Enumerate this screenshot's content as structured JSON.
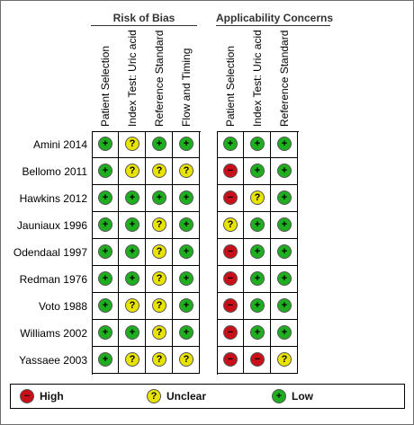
{
  "groups": [
    {
      "title": "Risk of Bias",
      "columns": [
        "Patient Selection",
        "Index Test: Uric acid",
        "Reference Standard",
        "Flow and Timing"
      ]
    },
    {
      "title": "Applicability Concerns",
      "columns": [
        "Patient Selection",
        "Index Test: Uric acid",
        "Reference Standard"
      ]
    }
  ],
  "studies": [
    {
      "name": "Amini 2014",
      "risk": [
        "low",
        "unclear",
        "low",
        "low"
      ],
      "applicability": [
        "low",
        "low",
        "low"
      ]
    },
    {
      "name": "Bellomo 2011",
      "risk": [
        "low",
        "unclear",
        "unclear",
        "unclear"
      ],
      "applicability": [
        "high",
        "low",
        "low"
      ]
    },
    {
      "name": "Hawkins 2012",
      "risk": [
        "low",
        "low",
        "low",
        "low"
      ],
      "applicability": [
        "high",
        "unclear",
        "low"
      ]
    },
    {
      "name": "Jauniaux 1996",
      "risk": [
        "low",
        "low",
        "unclear",
        "low"
      ],
      "applicability": [
        "unclear",
        "low",
        "low"
      ]
    },
    {
      "name": "Odendaal 1997",
      "risk": [
        "low",
        "low",
        "unclear",
        "low"
      ],
      "applicability": [
        "high",
        "low",
        "low"
      ]
    },
    {
      "name": "Redman 1976",
      "risk": [
        "low",
        "low",
        "unclear",
        "low"
      ],
      "applicability": [
        "high",
        "low",
        "low"
      ]
    },
    {
      "name": "Voto 1988",
      "risk": [
        "low",
        "unclear",
        "unclear",
        "low"
      ],
      "applicability": [
        "high",
        "low",
        "low"
      ]
    },
    {
      "name": "Williams 2002",
      "risk": [
        "low",
        "low",
        "unclear",
        "low"
      ],
      "applicability": [
        "high",
        "low",
        "low"
      ]
    },
    {
      "name": "Yassaee 2003",
      "risk": [
        "low",
        "unclear",
        "unclear",
        "unclear"
      ],
      "applicability": [
        "high",
        "high",
        "unclear"
      ]
    }
  ],
  "symbols": {
    "low": "+",
    "unclear": "?",
    "high": "−"
  },
  "legend": [
    {
      "key": "high",
      "label": "High"
    },
    {
      "key": "unclear",
      "label": "Unclear"
    },
    {
      "key": "low",
      "label": "Low"
    }
  ],
  "colors": {
    "low": "#1fae1f",
    "unclear": "#e9e300",
    "high": "#c8101a"
  }
}
